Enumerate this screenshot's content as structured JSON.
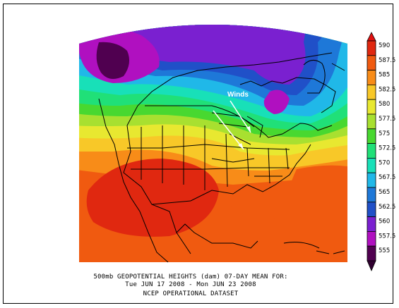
{
  "map": {
    "winds_label": "Winds",
    "caption_line1": "500mb GEOPOTENTIAL HEIGHTS (dam)   07-DAY MEAN FOR:",
    "caption_line2": "Tue JUN 17 2008 - Mon JUN 23 2008",
    "caption_line3": "NCEP OPERATIONAL DATASET"
  },
  "colorbar": {
    "labels": [
      "590",
      "587.5",
      "585",
      "582.5",
      "580",
      "577.5",
      "575",
      "572.5",
      "570",
      "567.5",
      "565",
      "562.5",
      "560",
      "557.5",
      "555"
    ],
    "colors": [
      "#e02810",
      "#f05a10",
      "#f88c18",
      "#f8c828",
      "#e8e830",
      "#a8e030",
      "#48d830",
      "#20e078",
      "#18e0b8",
      "#20b8e8",
      "#1e78d8",
      "#2050c8",
      "#7a20d0",
      "#b010c0",
      "#500050"
    ],
    "top_arrow_color": "#e01010",
    "bottom_arrow_color": "#300030"
  }
}
